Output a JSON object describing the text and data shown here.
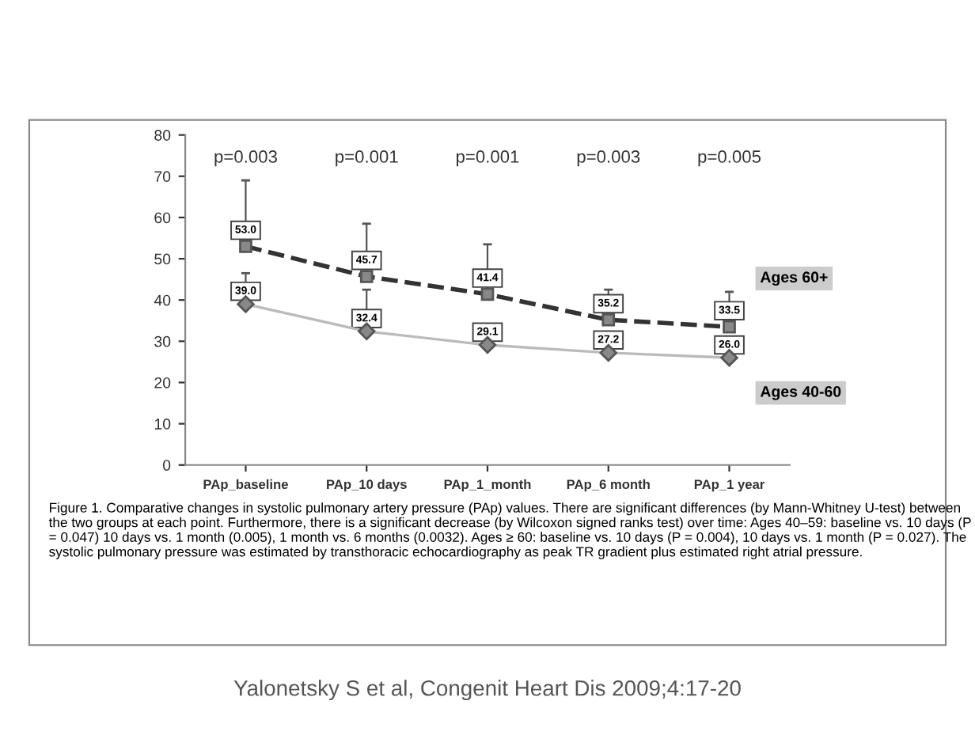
{
  "chart_data": {
    "type": "line",
    "categories": [
      "PAp_baseline",
      "PAp_10 days",
      "PAp_1_month",
      "PAp_6 month",
      "PAp_1 year"
    ],
    "series": [
      {
        "name": "Ages 60+",
        "color": "#333333",
        "line_style": "dashed",
        "marker": "square",
        "values": [
          53.0,
          45.7,
          41.4,
          35.2,
          33.5
        ],
        "value_labels": [
          "53.0",
          "45.7",
          "41.4",
          "35.2",
          "33.5"
        ],
        "errors": [
          [
            53.0,
            69
          ],
          [
            45.7,
            58.5
          ],
          [
            41.4,
            53.5
          ],
          [
            35.2,
            42.5
          ],
          [
            33.5,
            42
          ]
        ]
      },
      {
        "name": "Ages 40-60",
        "color": "#bbbbbb",
        "line_style": "solid",
        "marker": "diamond",
        "values": [
          39.0,
          32.4,
          29.1,
          27.2,
          26.0
        ],
        "value_labels": [
          "39.0",
          "32.4",
          "29.1",
          "27.2",
          "26.0"
        ],
        "errors": [
          [
            39.0,
            46.5
          ],
          [
            32.4,
            42.5
          ],
          null,
          null,
          null
        ]
      }
    ],
    "legend": false,
    "ylim": [
      0,
      80
    ],
    "yticks": [
      0,
      10,
      20,
      30,
      40,
      50,
      60,
      70,
      80
    ],
    "annotations": [
      "p=0.003",
      "p=0.001",
      "p=0.001",
      "p=0.003",
      "p=0.005",
      "Figure 1. Comparative changes in systolic pulmonary artery pressure (PAp) values. There are significant differences (by Mann-Whitney U-test) between the two groups at each point. Furthermore, there is a significant decrease (by Wilcoxon signed ranks test) over time: Ages 40–59: baseline vs. 10 days (P = 0.047) 10 days vs. 1 month (0.005), 1 month vs. 6 months (0.0032). Ages ≥ 60: baseline vs. 10 days (P = 0.004), 10 days vs. 1 month (P = 0.027). The systolic pulmonary pressure was estimated by transthoracic echocardiography as peak TR gradient plus estimated right atrial pressure.",
      "Yalonetsky S et al, Congenit Heart Dis 2009;4:17-20"
    ]
  }
}
